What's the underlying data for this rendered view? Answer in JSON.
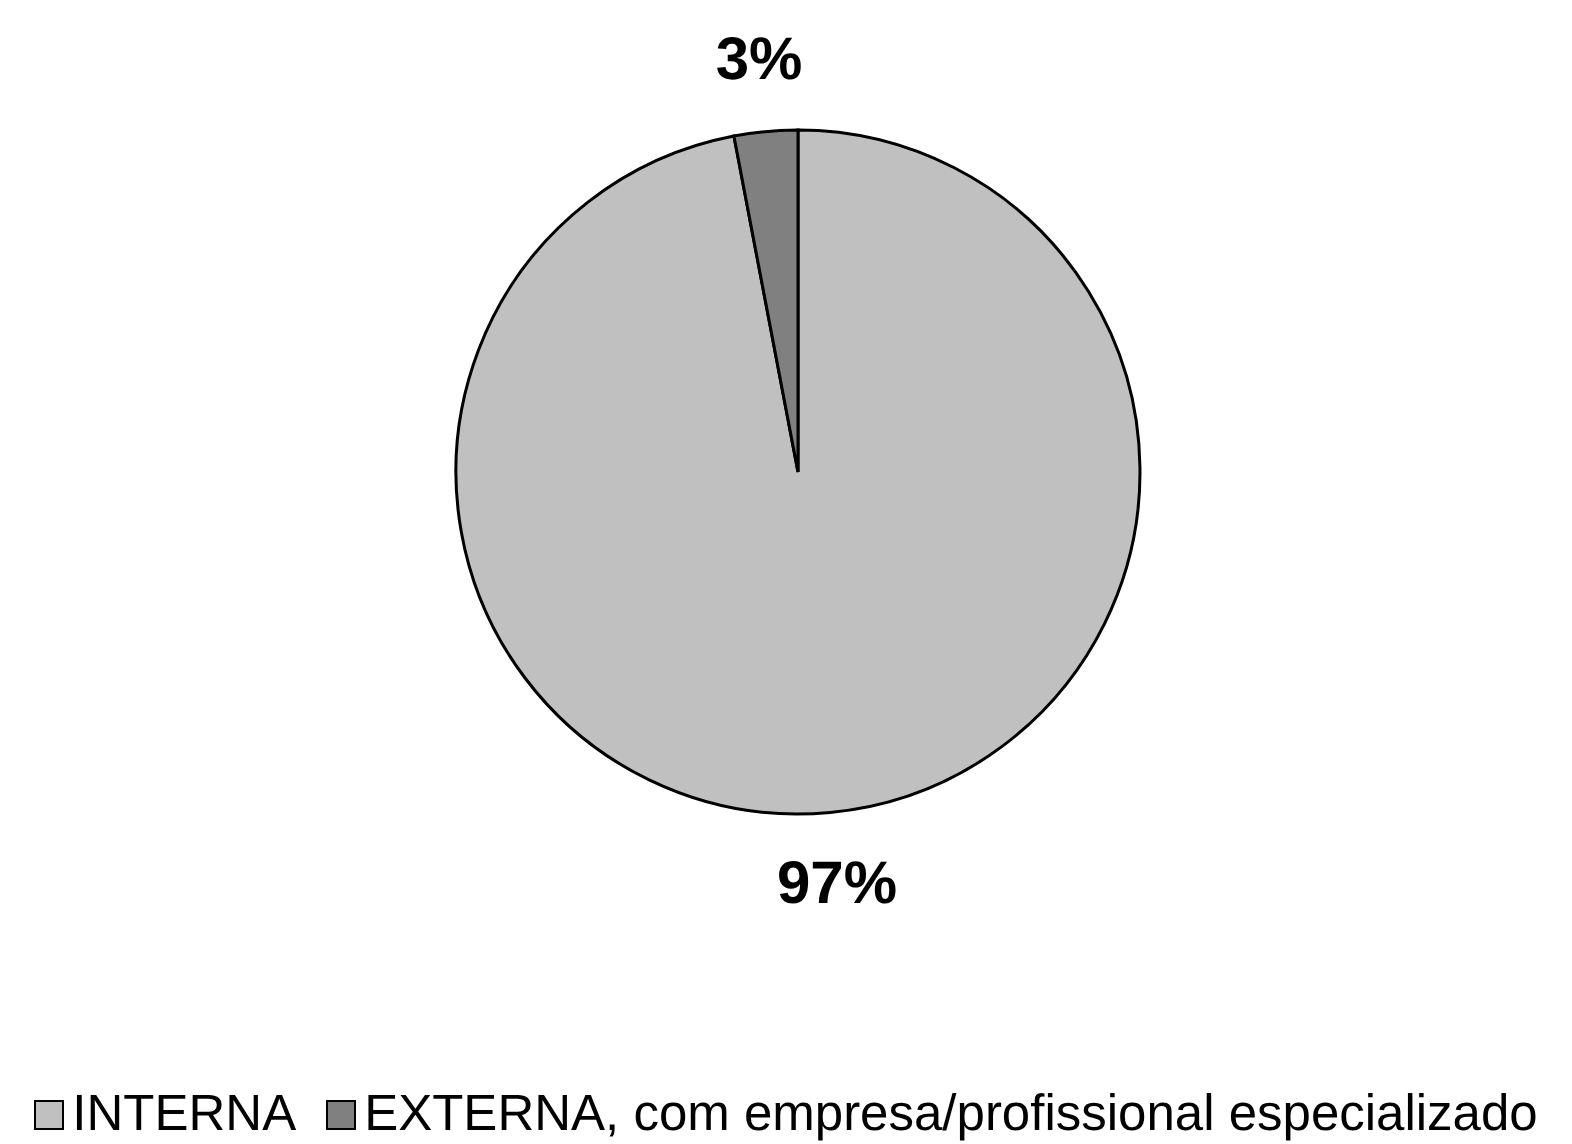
{
  "chart_data": {
    "type": "pie",
    "categories": [
      "INTERNA",
      "EXTERNA, com empresa/profissional especializado"
    ],
    "values": [
      97,
      3
    ],
    "colors": [
      "#c0c0c0",
      "#808080"
    ],
    "value_labels": [
      "97%",
      "3%"
    ],
    "legend": "bottom"
  }
}
